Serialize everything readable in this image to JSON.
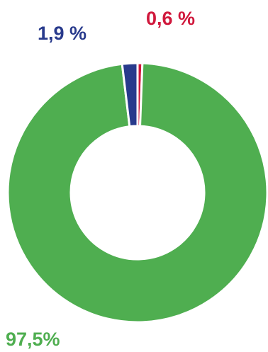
{
  "chart_data": {
    "type": "pie",
    "variant": "donut",
    "slices": [
      {
        "value": 97.5,
        "label": "97,5%",
        "color": "#4fae50"
      },
      {
        "value": 1.9,
        "label": "1,9 %",
        "color": "#283a8c"
      },
      {
        "value": 0.6,
        "label": "0,6 %",
        "color": "#d0183c"
      }
    ],
    "start": "top",
    "direction": "clockwise",
    "order_from_top": [
      2,
      0,
      1
    ],
    "separator_color": "#ffffff"
  }
}
